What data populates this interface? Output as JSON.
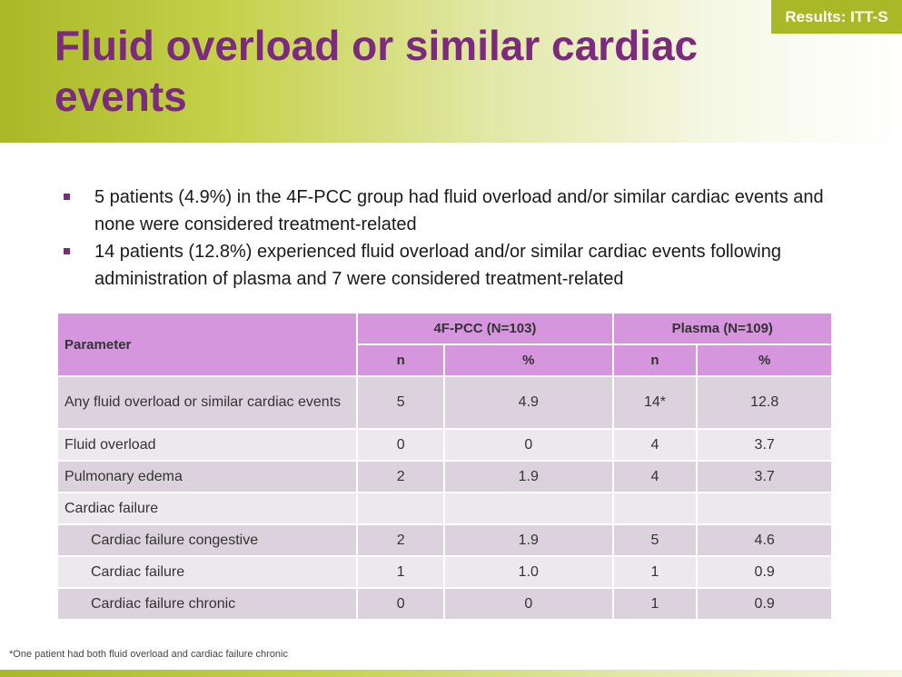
{
  "header": {
    "badge": "Results: ITT-S",
    "title": "Fluid overload or similar cardiac events"
  },
  "bullets": [
    "5 patients (4.9%) in the 4F-PCC group had fluid overload and/or similar cardiac events and none were considered treatment-related",
    "14 patients (12.8%) experienced fluid overload and/or similar cardiac events following administration of plasma and 7 were considered treatment-related"
  ],
  "table": {
    "parameter_header": "Parameter",
    "group1_header": "4F-PCC (N=103)",
    "group2_header": "Plasma (N=109)",
    "sub_headers": [
      "n",
      "%",
      "n",
      "%"
    ],
    "rows": [
      {
        "label": "Any fluid overload or similar cardiac events",
        "values": [
          "5",
          "4.9",
          "14*",
          "12.8"
        ]
      },
      {
        "label": "Fluid overload",
        "values": [
          "0",
          "0",
          "4",
          "3.7"
        ]
      },
      {
        "label": "Pulmonary edema",
        "values": [
          "2",
          "1.9",
          "4",
          "3.7"
        ]
      },
      {
        "label": "Cardiac failure",
        "values": [
          "",
          "",
          "",
          ""
        ]
      },
      {
        "label": "Cardiac failure congestive",
        "values": [
          "2",
          "1.9",
          "5",
          "4.6"
        ]
      },
      {
        "label": "Cardiac failure",
        "values": [
          "1",
          "1.0",
          "1",
          "0.9"
        ]
      },
      {
        "label": "Cardiac failure chronic",
        "values": [
          "0",
          "0",
          "1",
          "0.9"
        ]
      }
    ]
  },
  "footnote": "*One patient had both fluid overload and cardiac failure chronic",
  "colors": {
    "accent_green": "#a9b827",
    "title_purple": "#7b2a7e",
    "table_header": "#d596dd",
    "row_dark": "#dcd2dd",
    "row_light": "#ede8ee"
  }
}
